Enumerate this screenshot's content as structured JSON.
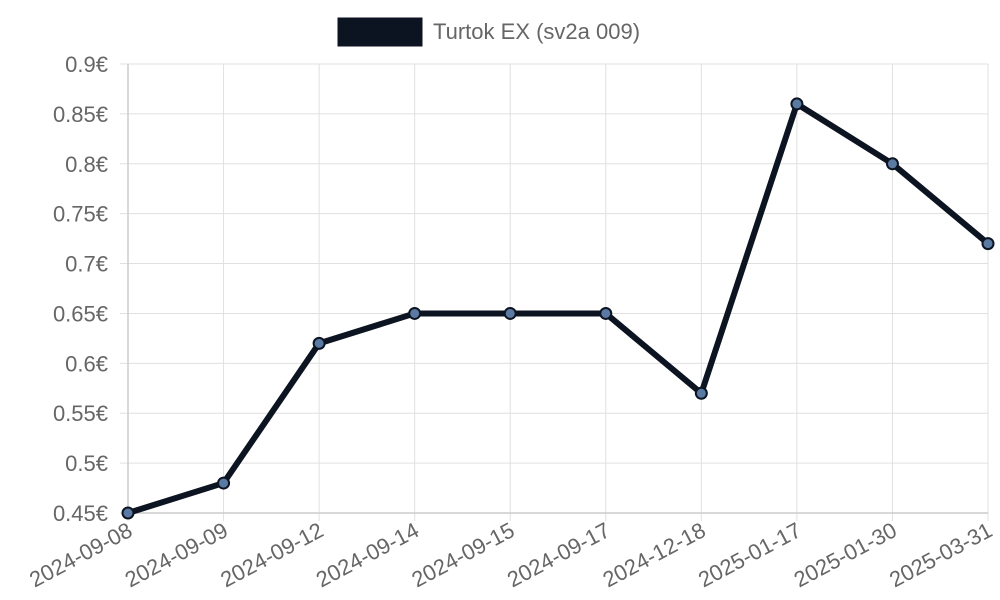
{
  "chart_data": {
    "type": "line",
    "categories": [
      "2024-09-08",
      "2024-09-09",
      "2024-09-12",
      "2024-09-14",
      "2024-09-15",
      "2024-09-17",
      "2024-12-18",
      "2025-01-17",
      "2025-01-30",
      "2025-03-31"
    ],
    "series": [
      {
        "name": "Turtok EX (sv2a 009)",
        "values": [
          0.45,
          0.48,
          0.62,
          0.65,
          0.65,
          0.65,
          0.57,
          0.86,
          0.8,
          0.72
        ]
      }
    ],
    "ylim": [
      0.45,
      0.9
    ],
    "y_ticks": [
      "0.45€",
      "0.5€",
      "0.55€",
      "0.6€",
      "0.65€",
      "0.7€",
      "0.75€",
      "0.8€",
      "0.85€",
      "0.9€"
    ],
    "legend_position": "top",
    "grid": true,
    "colors": {
      "line": "#0d1421",
      "point_fill": "#5b7aa3",
      "grid": "#e0e0e0",
      "axis": "#cccccc",
      "text": "#666666"
    }
  }
}
